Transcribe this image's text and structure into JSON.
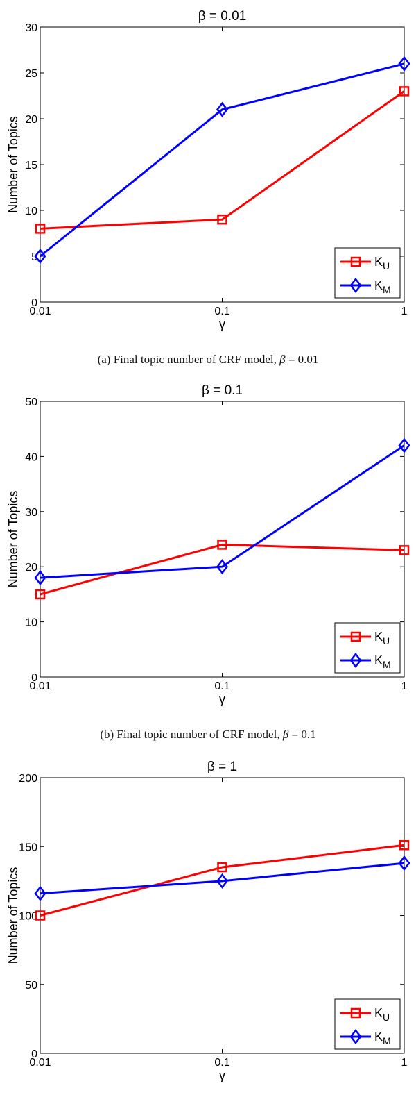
{
  "chart_data": [
    {
      "type": "line",
      "title": "β = 0.01",
      "xlabel": "γ",
      "ylabel": "Number of Topics",
      "xscale": "log",
      "x": [
        0.01,
        0.1,
        1
      ],
      "xticks": [
        "0.01",
        "0.1",
        "1"
      ],
      "ylim": [
        0,
        30
      ],
      "yticks": [
        "0",
        "5",
        "10",
        "15",
        "20",
        "25",
        "30"
      ],
      "grid": false,
      "legend_position": "bottom-right",
      "series": [
        {
          "name": "K_U",
          "label_main": "K",
          "label_sub": "U",
          "color": "#ff0000",
          "marker": "square",
          "values": [
            8,
            9,
            23
          ]
        },
        {
          "name": "K_M",
          "label_main": "K",
          "label_sub": "M",
          "color": "#0000ff",
          "marker": "diamond",
          "values": [
            5,
            21,
            26
          ]
        }
      ],
      "caption": {
        "prefix": "(a) Final topic number of CRF model, ",
        "beta_symbol": "β",
        "equals": " = ",
        "beta_value": "0.01"
      }
    },
    {
      "type": "line",
      "title": "β = 0.1",
      "xlabel": "γ",
      "ylabel": "Number of Topics",
      "xscale": "log",
      "x": [
        0.01,
        0.1,
        1
      ],
      "xticks": [
        "0.01",
        "0.1",
        "1"
      ],
      "ylim": [
        0,
        50
      ],
      "yticks": [
        "0",
        "10",
        "20",
        "30",
        "40",
        "50"
      ],
      "grid": false,
      "legend_position": "bottom-right",
      "series": [
        {
          "name": "K_U",
          "label_main": "K",
          "label_sub": "U",
          "color": "#ff0000",
          "marker": "square",
          "values": [
            15,
            24,
            23
          ]
        },
        {
          "name": "K_M",
          "label_main": "K",
          "label_sub": "M",
          "color": "#0000ff",
          "marker": "diamond",
          "values": [
            18,
            20,
            42
          ]
        }
      ],
      "caption": {
        "prefix": "(b) Final topic number of CRF model, ",
        "beta_symbol": "β",
        "equals": " = ",
        "beta_value": "0.1"
      }
    },
    {
      "type": "line",
      "title": "β = 1",
      "xlabel": "γ",
      "ylabel": "Number of Topics",
      "xscale": "log",
      "x": [
        0.01,
        0.1,
        1
      ],
      "xticks": [
        "0.01",
        "0.1",
        "1"
      ],
      "ylim": [
        0,
        200
      ],
      "yticks": [
        "0",
        "50",
        "100",
        "150",
        "200"
      ],
      "grid": false,
      "legend_position": "bottom-right",
      "series": [
        {
          "name": "K_U",
          "label_main": "K",
          "label_sub": "U",
          "color": "#ff0000",
          "marker": "square",
          "values": [
            100,
            135,
            151
          ]
        },
        {
          "name": "K_M",
          "label_main": "K",
          "label_sub": "M",
          "color": "#0000ff",
          "marker": "diamond",
          "values": [
            116,
            125,
            138
          ]
        }
      ]
    }
  ]
}
